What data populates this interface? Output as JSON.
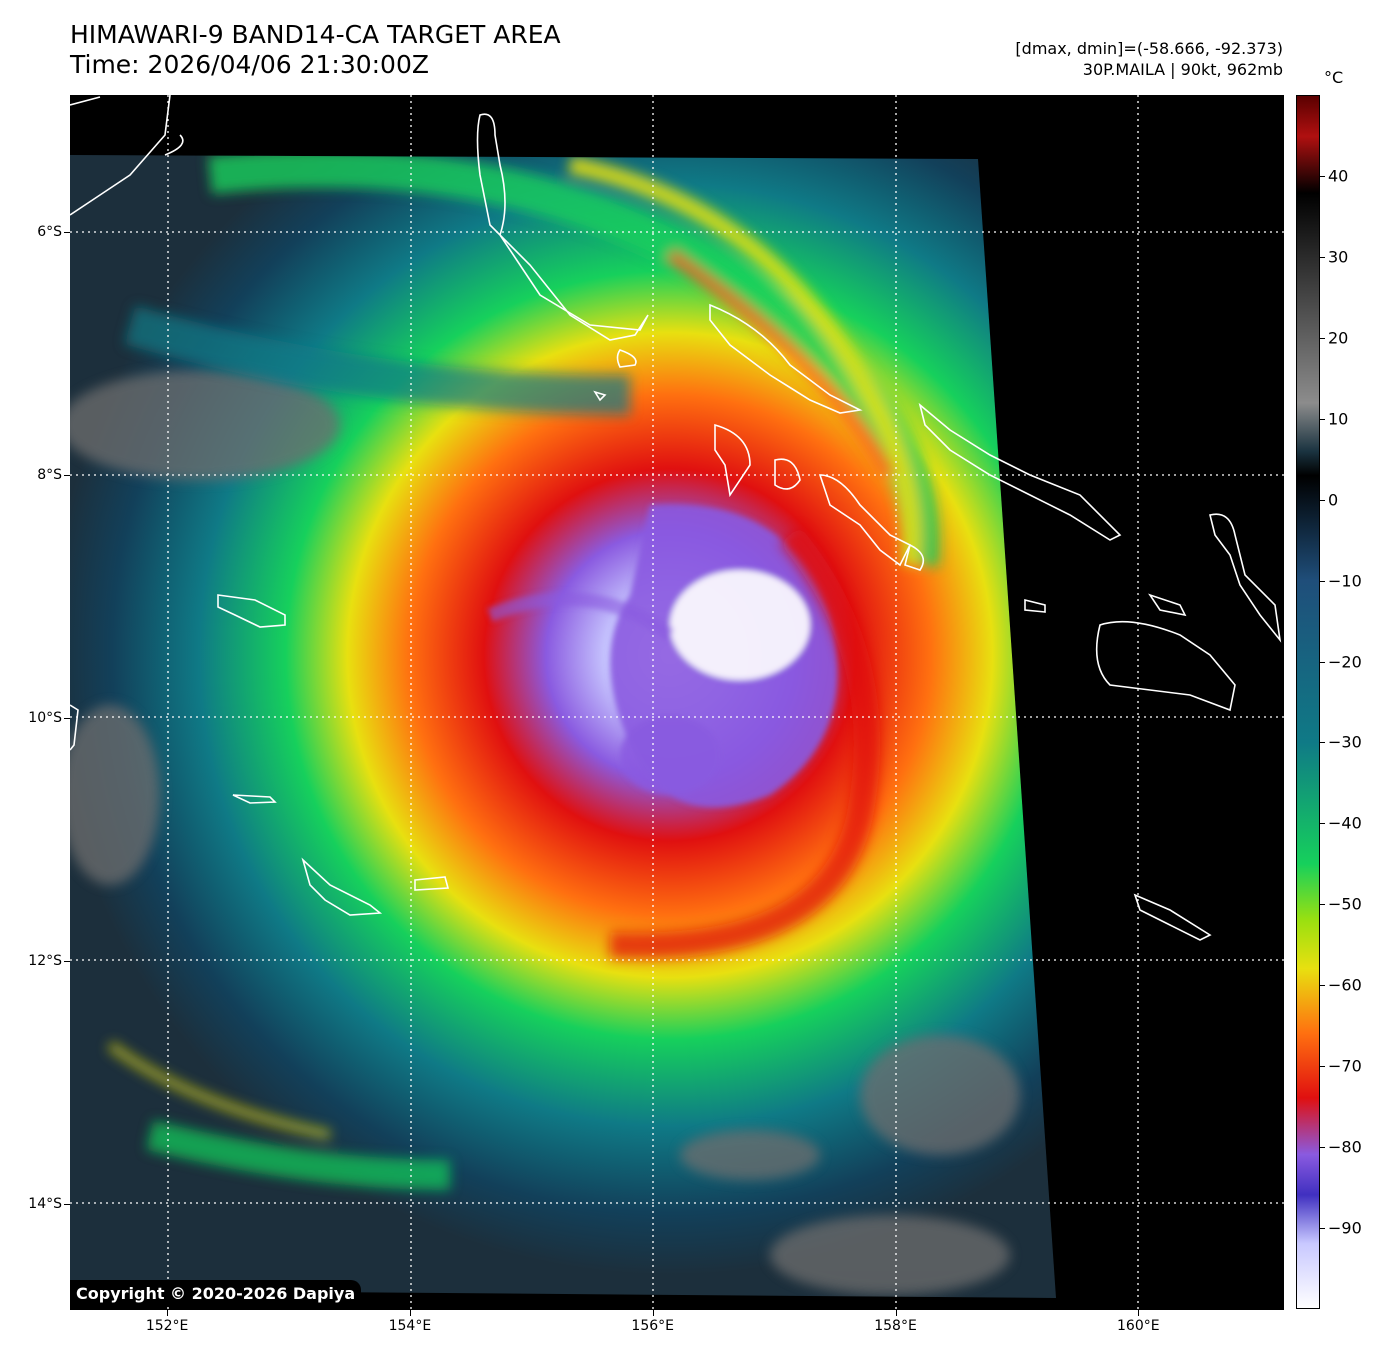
{
  "header": {
    "title_line1": "HIMAWARI-9 BAND14-CA TARGET AREA",
    "title_line2": "Time: 2026/04/06 21:30:00Z",
    "range_text": "[dmax, dmin]=(-58.666, -92.373)",
    "storm_text": "30P.MAILA | 90kt, 962mb"
  },
  "map": {
    "lat_labels": [
      "6°S",
      "8°S",
      "10°S",
      "12°S",
      "14°S"
    ],
    "lon_labels": [
      "152°E",
      "154°E",
      "156°E",
      "158°E",
      "160°E"
    ],
    "lat_values": [
      -6,
      -8,
      -10,
      -12,
      -14
    ],
    "lon_values": [
      152,
      154,
      156,
      158,
      160
    ],
    "lon_range": [
      151.2,
      161.2
    ],
    "lat_range": [
      -4.87,
      -14.87
    ],
    "storm_center": {
      "lon": 156.7,
      "lat": -9.25
    },
    "coast_color": "#ffffff",
    "grid": true
  },
  "colorbar": {
    "unit": "°C",
    "range": [
      -100,
      50
    ],
    "tick_labels": [
      "40",
      "30",
      "20",
      "10",
      "0",
      "−10",
      "−20",
      "−30",
      "−40",
      "−50",
      "−60",
      "−70",
      "−80",
      "−90"
    ],
    "tick_values": [
      40,
      30,
      20,
      10,
      0,
      -10,
      -20,
      -30,
      -40,
      -50,
      -60,
      -70,
      -80,
      -90
    ],
    "colors": {
      "top": "#5a0000",
      "mid_dark": "#000000",
      "gray": "#8c8c8c",
      "teal": "#0f7a86",
      "green": "#16d05c",
      "yellow": "#e8e010",
      "orange": "#ff7010",
      "red": "#e01010",
      "purple": "#8a5ae0",
      "bottom": "#ffffff"
    }
  },
  "footer": {
    "copyright": "Copyright © 2020-2026 Dapiya"
  }
}
